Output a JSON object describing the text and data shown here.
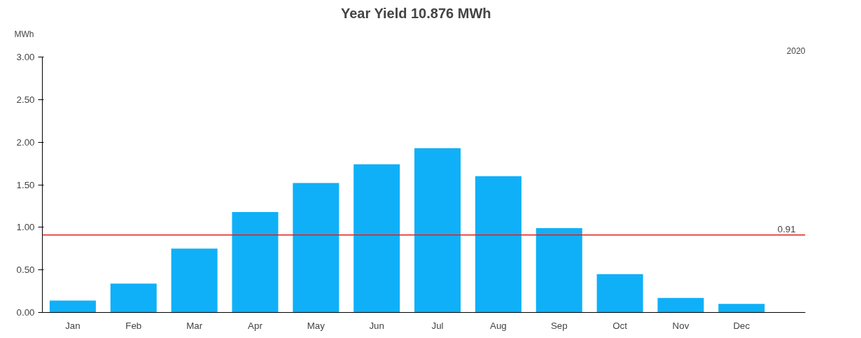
{
  "chart_data": {
    "type": "bar",
    "title": "Year Yield     10.876 MWh",
    "ylabel": "MWh",
    "annotations": [
      "2020"
    ],
    "categories": [
      "Jan",
      "Feb",
      "Mar",
      "Apr",
      "May",
      "Jun",
      "Jul",
      "Aug",
      "Sep",
      "Oct",
      "Nov",
      "Dec"
    ],
    "values": [
      0.14,
      0.34,
      0.75,
      1.18,
      1.52,
      1.74,
      1.93,
      1.6,
      0.99,
      0.45,
      0.17,
      0.1
    ],
    "color": "#0fb0f8",
    "ylim": [
      0,
      3.0
    ],
    "yticks": [
      {
        "value": 0,
        "label": "0.00"
      },
      {
        "value": 0.5,
        "label": "0.50"
      },
      {
        "value": 1,
        "label": "1.00"
      },
      {
        "value": 1.5,
        "label": "1.50"
      },
      {
        "value": 2,
        "label": "2.00"
      },
      {
        "value": 2.5,
        "label": "2.50"
      },
      {
        "value": 3,
        "label": "3.00"
      }
    ],
    "ref_lines": [
      {
        "axis": "y",
        "value": 0.91,
        "label": "0.91",
        "color": "#e02020"
      }
    ],
    "grid": false
  }
}
